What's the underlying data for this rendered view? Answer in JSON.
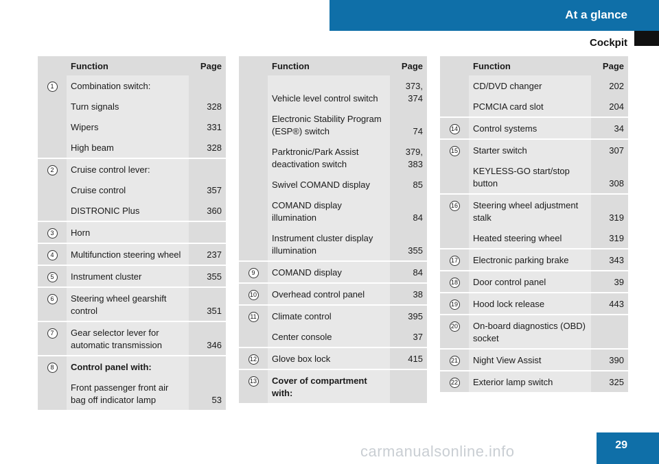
{
  "header": {
    "title": "At a glance",
    "section": "Cockpit"
  },
  "page_number": "29",
  "watermark": "carmanualsonline.info",
  "headers": {
    "function": "Function",
    "page": "Page"
  },
  "col1": [
    {
      "num": "1",
      "items": [
        {
          "text": "Combination switch:",
          "page": ""
        },
        {
          "text": "Turn signals",
          "page": "328"
        },
        {
          "text": "Wipers",
          "page": "331"
        },
        {
          "text": "High beam",
          "page": "328"
        }
      ]
    },
    {
      "num": "2",
      "items": [
        {
          "text": "Cruise control lever:",
          "page": ""
        },
        {
          "text": "Cruise control",
          "page": "357"
        },
        {
          "text": "DISTRONIC Plus",
          "page": "360"
        }
      ]
    },
    {
      "num": "3",
      "items": [
        {
          "text": "Horn",
          "page": ""
        }
      ]
    },
    {
      "num": "4",
      "items": [
        {
          "text": "Multifunction steering wheel",
          "page": "237"
        }
      ]
    },
    {
      "num": "5",
      "items": [
        {
          "text": "Instrument cluster",
          "page": "355"
        }
      ]
    },
    {
      "num": "6",
      "items": [
        {
          "text": "Steering wheel gearshift control",
          "page": "351"
        }
      ]
    },
    {
      "num": "7",
      "items": [
        {
          "text": "Gear selector lever for automatic transmission",
          "page": "346"
        }
      ]
    },
    {
      "num": "8",
      "items": [
        {
          "text": "Control panel with:",
          "page": "",
          "bold": true
        },
        {
          "text": "Front passenger front air bag off indicator lamp",
          "page": "53"
        }
      ]
    }
  ],
  "col2": [
    {
      "num": "",
      "items": [
        {
          "text": "Vehicle level control switch",
          "page": "373, 374"
        },
        {
          "text": "Electronic Stability Program (ESP®) switch",
          "page": "74"
        },
        {
          "text": "Parktronic/Park Assist deactivation switch",
          "page": "379, 383"
        },
        {
          "text": "Swivel COMAND display",
          "page": "85"
        },
        {
          "text": "COMAND display illumination",
          "page": "84"
        },
        {
          "text": "Instrument cluster display illumination",
          "page": "355"
        }
      ]
    },
    {
      "num": "9",
      "items": [
        {
          "text": "COMAND display",
          "page": "84"
        }
      ]
    },
    {
      "num": "10",
      "items": [
        {
          "text": "Overhead control panel",
          "page": "38"
        }
      ]
    },
    {
      "num": "11",
      "items": [
        {
          "text": "Climate control",
          "page": "395"
        },
        {
          "text": "Center console",
          "page": "37"
        }
      ]
    },
    {
      "num": "12",
      "items": [
        {
          "text": "Glove box lock",
          "page": "415"
        }
      ]
    },
    {
      "num": "13",
      "items": [
        {
          "text": "Cover of compartment with:",
          "page": "",
          "bold": true
        }
      ]
    }
  ],
  "col3": [
    {
      "num": "",
      "items": [
        {
          "text": "CD/DVD changer",
          "page": "202"
        },
        {
          "text": "PCMCIA card slot",
          "page": "204"
        }
      ]
    },
    {
      "num": "14",
      "items": [
        {
          "text": "Control systems",
          "page": "34"
        }
      ]
    },
    {
      "num": "15",
      "items": [
        {
          "text": "Starter switch",
          "page": "307"
        },
        {
          "text": "KEYLESS-GO start/stop button",
          "page": "308"
        }
      ]
    },
    {
      "num": "16",
      "items": [
        {
          "text": "Steering wheel adjustment stalk",
          "page": "319"
        },
        {
          "text": "Heated steering wheel",
          "page": "319"
        }
      ]
    },
    {
      "num": "17",
      "items": [
        {
          "text": "Electronic parking brake",
          "page": "343"
        }
      ]
    },
    {
      "num": "18",
      "items": [
        {
          "text": "Door control panel",
          "page": "39"
        }
      ]
    },
    {
      "num": "19",
      "items": [
        {
          "text": "Hood lock release",
          "page": "443"
        }
      ]
    },
    {
      "num": "20",
      "items": [
        {
          "text": "On-board diagnostics (OBD) socket",
          "page": ""
        }
      ]
    },
    {
      "num": "21",
      "items": [
        {
          "text": "Night View Assist",
          "page": "390"
        }
      ]
    },
    {
      "num": "22",
      "items": [
        {
          "text": "Exterior lamp switch",
          "page": "325"
        }
      ]
    }
  ]
}
